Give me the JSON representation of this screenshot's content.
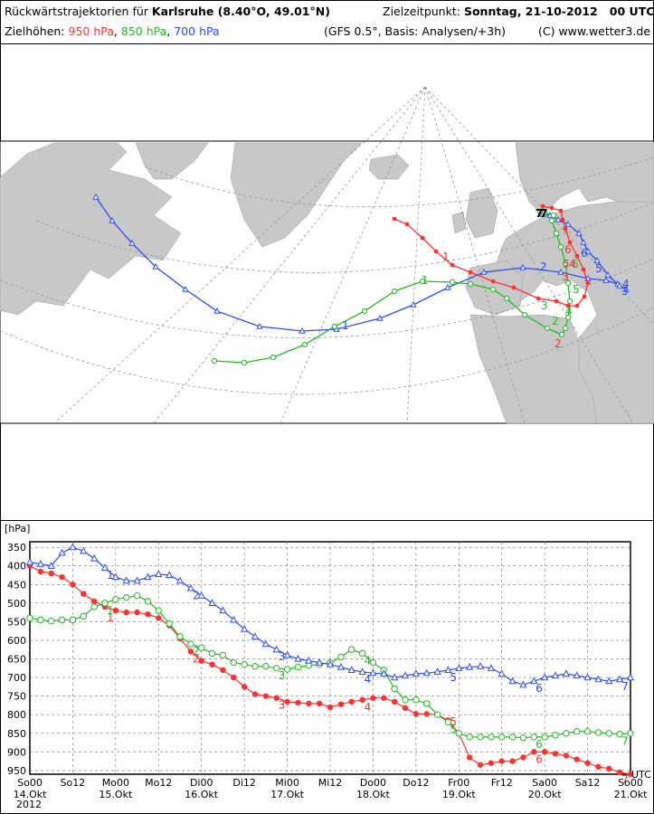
{
  "header": {
    "title_prefix": "Rückwärtstrajektorien für",
    "location": "Karlsruhe (8.40°O, 49.01°N)",
    "target_label": "Zielzeitpunkt:",
    "target_time": "Sonntag, 21-10-2012   00 UTC",
    "heights_label": "Zielhöhen:",
    "h950": "950 hPa",
    "h850": "850 hPa",
    "h700": "700 hPa",
    "sep1": ",",
    "sep2": ",",
    "model_info": "(GFS 0.5°, Basis: Analysen/+3h)",
    "copyright": "(C) www.wetter3.de"
  },
  "colors": {
    "p950": "#ff3030",
    "p850": "#22bb22",
    "p700": "#2a4cff",
    "land": "#c8c8c8",
    "sea": "#ffffff"
  },
  "chart_data": {
    "type": "line",
    "ylabel": "[hPa]",
    "y_ticks": [
      350,
      400,
      450,
      500,
      550,
      600,
      650,
      700,
      750,
      800,
      850,
      900,
      950
    ],
    "ylim": [
      335,
      960
    ],
    "y_inverted": true,
    "x_unit": "UTC",
    "x_range_hours": [
      0,
      168
    ],
    "x_tick_labels": [
      "So00",
      "So12",
      "Mo00",
      "Mo12",
      "Di00",
      "Di12",
      "Mi00",
      "Mi12",
      "Do00",
      "Do12",
      "Fr00",
      "Fr12",
      "Sa00",
      "Sa12",
      "So00"
    ],
    "x_date_labels": [
      "14.Okt",
      "15.Okt",
      "16.Okt",
      "17.Okt",
      "18.Okt",
      "19.Okt",
      "20.Okt",
      "21.Okt"
    ],
    "x_year_label": "2012",
    "grid": true,
    "day_markers": [
      "1",
      "2",
      "3",
      "4",
      "5",
      "6",
      "7"
    ],
    "series": [
      {
        "name": "950 hPa",
        "color": "#ff3030",
        "marker": "filled-circle",
        "t": [
          0,
          3,
          6,
          9,
          12,
          15,
          18,
          21,
          24,
          27,
          30,
          33,
          36,
          39,
          42,
          45,
          48,
          51,
          54,
          57,
          60,
          63,
          66,
          69,
          72,
          75,
          78,
          81,
          84,
          87,
          90,
          93,
          96,
          99,
          102,
          105,
          108,
          111,
          114,
          117,
          120,
          123,
          126,
          129,
          132,
          135,
          138,
          141,
          144,
          147,
          150,
          153,
          156,
          159,
          162,
          165,
          168
        ],
        "values": [
          400,
          415,
          420,
          430,
          450,
          475,
          495,
          510,
          520,
          525,
          525,
          530,
          540,
          560,
          595,
          630,
          655,
          665,
          680,
          700,
          725,
          745,
          750,
          755,
          765,
          768,
          770,
          770,
          780,
          772,
          765,
          760,
          755,
          755,
          765,
          782,
          798,
          798,
          800,
          815,
          850,
          915,
          935,
          930,
          925,
          925,
          915,
          900,
          900,
          905,
          910,
          920,
          930,
          940,
          945,
          955,
          960
        ],
        "labels": [
          {
            "text": "1",
            "t": 21,
            "v": 520
          },
          {
            "text": "2",
            "t": 45,
            "v": 630
          },
          {
            "text": "3",
            "t": 69,
            "v": 755
          },
          {
            "text": "4",
            "t": 93,
            "v": 760
          },
          {
            "text": "5",
            "t": 117,
            "v": 800
          },
          {
            "text": "6",
            "t": 141,
            "v": 900
          },
          {
            "text": "7",
            "t": 165,
            "v": 955
          }
        ]
      },
      {
        "name": "850 hPa",
        "color": "#22bb22",
        "marker": "open-circle",
        "t": [
          0,
          3,
          6,
          9,
          12,
          15,
          18,
          21,
          24,
          27,
          30,
          33,
          36,
          39,
          42,
          45,
          48,
          51,
          54,
          57,
          60,
          63,
          66,
          69,
          72,
          75,
          78,
          81,
          84,
          87,
          90,
          93,
          96,
          99,
          102,
          105,
          108,
          111,
          114,
          117,
          120,
          123,
          126,
          129,
          132,
          135,
          138,
          141,
          144,
          147,
          150,
          153,
          156,
          159,
          162,
          165,
          168
        ],
        "values": [
          540,
          545,
          548,
          545,
          545,
          535,
          510,
          500,
          490,
          485,
          480,
          495,
          520,
          555,
          590,
          610,
          620,
          635,
          640,
          660,
          665,
          670,
          670,
          675,
          678,
          672,
          668,
          665,
          660,
          645,
          625,
          635,
          660,
          680,
          730,
          760,
          760,
          770,
          800,
          820,
          850,
          860,
          860,
          860,
          860,
          860,
          862,
          860,
          860,
          855,
          850,
          845,
          845,
          848,
          850,
          852,
          850
        ],
        "labels": [
          {
            "text": "1",
            "t": 21,
            "v": 500
          },
          {
            "text": "2",
            "t": 45,
            "v": 610
          },
          {
            "text": "3",
            "t": 69,
            "v": 675
          },
          {
            "text": "4",
            "t": 93,
            "v": 635
          },
          {
            "text": "5",
            "t": 117,
            "v": 820
          },
          {
            "text": "6",
            "t": 141,
            "v": 860
          },
          {
            "text": "7",
            "t": 165,
            "v": 852
          }
        ]
      },
      {
        "name": "700 hPa",
        "color": "#2a4cff",
        "marker": "open-triangle",
        "t": [
          0,
          3,
          6,
          9,
          12,
          15,
          18,
          21,
          24,
          27,
          30,
          33,
          36,
          39,
          42,
          45,
          48,
          51,
          54,
          57,
          60,
          63,
          66,
          69,
          72,
          75,
          78,
          81,
          84,
          87,
          90,
          93,
          96,
          99,
          102,
          105,
          108,
          111,
          114,
          117,
          120,
          123,
          126,
          129,
          132,
          135,
          138,
          141,
          144,
          147,
          150,
          153,
          156,
          159,
          162,
          165,
          168
        ],
        "values": [
          390,
          395,
          400,
          365,
          350,
          360,
          380,
          405,
          430,
          440,
          440,
          430,
          422,
          425,
          440,
          460,
          480,
          500,
          520,
          545,
          570,
          590,
          610,
          625,
          640,
          650,
          655,
          660,
          665,
          672,
          680,
          685,
          688,
          690,
          700,
          695,
          690,
          688,
          685,
          680,
          675,
          672,
          670,
          675,
          690,
          710,
          720,
          710,
          700,
          695,
          690,
          695,
          700,
          705,
          710,
          705,
          700
        ],
        "labels": [
          {
            "text": "1",
            "t": 21,
            "v": 405
          },
          {
            "text": "2",
            "t": 45,
            "v": 460
          },
          {
            "text": "3",
            "t": 69,
            "v": 625
          },
          {
            "text": "4",
            "t": 93,
            "v": 685
          },
          {
            "text": "5",
            "t": 117,
            "v": 680
          },
          {
            "text": "6",
            "t": 141,
            "v": 710
          },
          {
            "text": "7",
            "t": 165,
            "v": 705
          }
        ]
      }
    ]
  },
  "map": {
    "labels": [
      "1",
      "2",
      "3",
      "4",
      "5",
      "6",
      "7"
    ]
  }
}
